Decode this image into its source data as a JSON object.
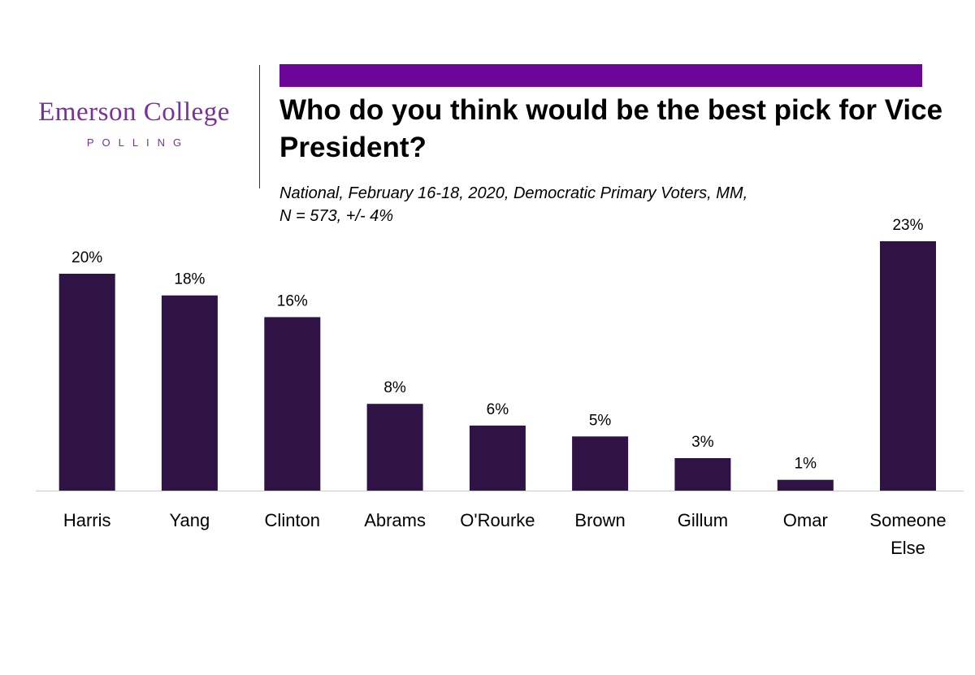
{
  "logo": {
    "name": "Emerson College",
    "sub": "POLLING"
  },
  "colors": {
    "accent": "#6d0598",
    "bar": "#2f1345",
    "logo": "#7b2f9a"
  },
  "chart_data": {
    "type": "bar",
    "title": "Who do you think would be the best pick for Vice President?",
    "subtitle_lines": [
      "National, February 16-18, 2020, Democratic Primary Voters, MM,",
      "N = 573, +/- 4%"
    ],
    "categories": [
      "Harris",
      "Yang",
      "Clinton",
      "Abrams",
      "O'Rourke",
      "Brown",
      "Gillum",
      "Omar",
      "Someone Else"
    ],
    "category_lines": [
      [
        "Harris"
      ],
      [
        "Yang"
      ],
      [
        "Clinton"
      ],
      [
        "Abrams"
      ],
      [
        "O'Rourke"
      ],
      [
        "Brown"
      ],
      [
        "Gillum"
      ],
      [
        "Omar"
      ],
      [
        "Someone",
        "Else"
      ]
    ],
    "values": [
      20,
      18,
      16,
      8,
      6,
      5,
      3,
      1,
      23
    ],
    "value_labels": [
      "20%",
      "18%",
      "16%",
      "8%",
      "6%",
      "5%",
      "3%",
      "1%",
      "23%"
    ],
    "unit": "%",
    "ylim": [
      0,
      23
    ],
    "grid": false,
    "legend": "none"
  }
}
